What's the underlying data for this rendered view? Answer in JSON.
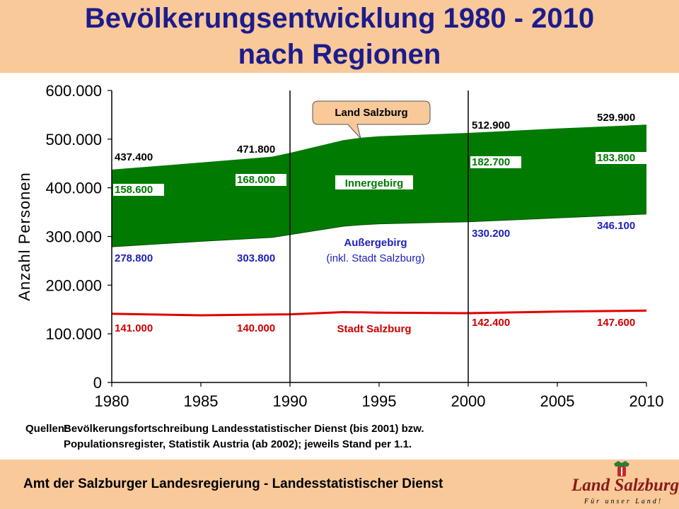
{
  "title": {
    "line1": "Bevölkerungsentwicklung 1980 - 2010",
    "line2": "nach Regionen"
  },
  "sources": {
    "label": "Quellen:",
    "line1": "Bevölkerungsfortschreibung Landesstatistischer Dienst (bis 2001) bzw.",
    "line2": "Populationsregister, Statistik Austria (ab 2002); jeweils Stand per 1.1."
  },
  "footer": {
    "text": "Amt der Salzburger Landesregierung - Landesstatistischer Dienst",
    "logo_name": "Land Salzburg",
    "logo_slogan": "Für unser Land!"
  },
  "colors": {
    "header_bg": "#F9C99A",
    "title": "#1C1C8C",
    "area_green": "#007A00",
    "line_red": "#E00000",
    "blue_text": "#1F1FB8",
    "red_text": "#CC0000"
  },
  "chart_data": {
    "type": "area",
    "ylabel": "Anzahl Personen",
    "xlabel": "",
    "xlim": [
      1980,
      2010
    ],
    "ylim": [
      0,
      600000
    ],
    "x_ticks": [
      "1980",
      "1985",
      "1990",
      "1995",
      "2000",
      "2005",
      "2010"
    ],
    "y_ticks": [
      "0",
      "100.000",
      "200.000",
      "300.000",
      "400.000",
      "500.000",
      "600.000"
    ],
    "vertical_reference_lines": [
      1990,
      2000
    ],
    "series": [
      {
        "name": "Außergebirg",
        "x": [
          1980,
          1985,
          1989,
          1990,
          1993,
          1994,
          1995,
          2000,
          2005,
          2010
        ],
        "values": [
          278800,
          290000,
          298000,
          303800,
          321000,
          324000,
          326000,
          330200,
          338000,
          346100
        ]
      },
      {
        "name": "Land Salzburg",
        "x": [
          1980,
          1985,
          1989,
          1990,
          1993,
          1994,
          1995,
          2000,
          2005,
          2010
        ],
        "values": [
          437400,
          452000,
          464000,
          471800,
          498000,
          503000,
          506000,
          512900,
          522000,
          529900
        ]
      },
      {
        "name": "Stadt Salzburg",
        "x": [
          1980,
          1985,
          1990,
          1993,
          1995,
          2000,
          2005,
          2010
        ],
        "values": [
          141000,
          138000,
          140000,
          144500,
          143500,
          142400,
          145500,
          147600
        ]
      }
    ],
    "data_labels": {
      "total": [
        {
          "x": 1980,
          "text": "437.400"
        },
        {
          "x": 1990,
          "text": "471.800"
        },
        {
          "x": 2000,
          "text": "512.900"
        },
        {
          "x": 2010,
          "text": "529.900"
        }
      ],
      "innergebirg": [
        {
          "x": 1980,
          "text": "158.600"
        },
        {
          "x": 1990,
          "text": "168.000"
        },
        {
          "x": 2000,
          "text": "182.700"
        },
        {
          "x": 2010,
          "text": "183.800"
        }
      ],
      "aussergebirg": [
        {
          "x": 1980,
          "text": "278.800"
        },
        {
          "x": 1990,
          "text": "303.800"
        },
        {
          "x": 2000,
          "text": "330.200"
        },
        {
          "x": 2010,
          "text": "346.100"
        }
      ],
      "stadt": [
        {
          "x": 1980,
          "text": "141.000"
        },
        {
          "x": 1990,
          "text": "140.000"
        },
        {
          "x": 2000,
          "text": "142.400"
        },
        {
          "x": 2010,
          "text": "147.600"
        }
      ]
    },
    "annotations": {
      "land": "Land Salzburg",
      "innergebirg": "Innergebirg",
      "aussergebirg": "Außergebirg",
      "aussergebirg_note": "(inkl. Stadt Salzburg)",
      "stadt": "Stadt Salzburg"
    }
  }
}
